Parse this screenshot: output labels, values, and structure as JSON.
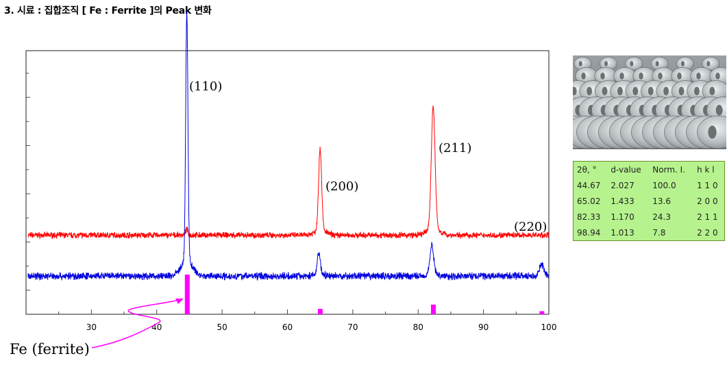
{
  "title": "3. 시료 : 집합조직 [ Fe : Ferrite ]의 Peak 변화",
  "chart_data": {
    "type": "line",
    "xlim": [
      20,
      100
    ],
    "x_ticks": [
      "30",
      "40",
      "50",
      "60",
      "70",
      "80",
      "90",
      "100"
    ],
    "series": [
      {
        "color": "#ff0000",
        "baseline": 0.3,
        "noise": 0.009,
        "peaks": [
          {
            "x": 44.6,
            "h": 0.02
          },
          {
            "x": 65.0,
            "h": 0.31
          },
          {
            "x": 82.3,
            "h": 0.46
          }
        ]
      },
      {
        "color": "#0000dd",
        "baseline": 0.145,
        "noise": 0.011,
        "peaks": [
          {
            "x": 44.6,
            "h": 0.94
          },
          {
            "x": 64.8,
            "h": 0.085
          },
          {
            "x": 82.1,
            "h": 0.11
          },
          {
            "x": 98.9,
            "h": 0.04
          }
        ]
      }
    ],
    "reference_bars": {
      "color": "#ff00ff",
      "x": [
        44.67,
        65.02,
        82.33,
        98.94
      ],
      "intensity": [
        100.0,
        13.6,
        24.3,
        7.8
      ]
    },
    "peak_labels": [
      {
        "text": "(110)",
        "x": 44.67
      },
      {
        "text": "(200)",
        "x": 65.02
      },
      {
        "text": "(211)",
        "x": 82.33
      },
      {
        "text": "(220)",
        "x": 98.94
      }
    ],
    "annotation": "Fe (ferrite)"
  },
  "table": {
    "headers": [
      "2θ, °",
      "d-value",
      "Norm. I.",
      "h k l"
    ],
    "rows": [
      [
        "44.67",
        "2.027",
        "100.0",
        "1 1 0"
      ],
      [
        "65.02",
        "1.433",
        "13.6",
        "2 0 0"
      ],
      [
        "82.33",
        "1.170",
        "24.3",
        "2 1 1"
      ],
      [
        "98.94",
        "1.013",
        "7.8",
        "2 2 0"
      ]
    ]
  },
  "photo": {
    "icon": "steel-coil-photo"
  }
}
